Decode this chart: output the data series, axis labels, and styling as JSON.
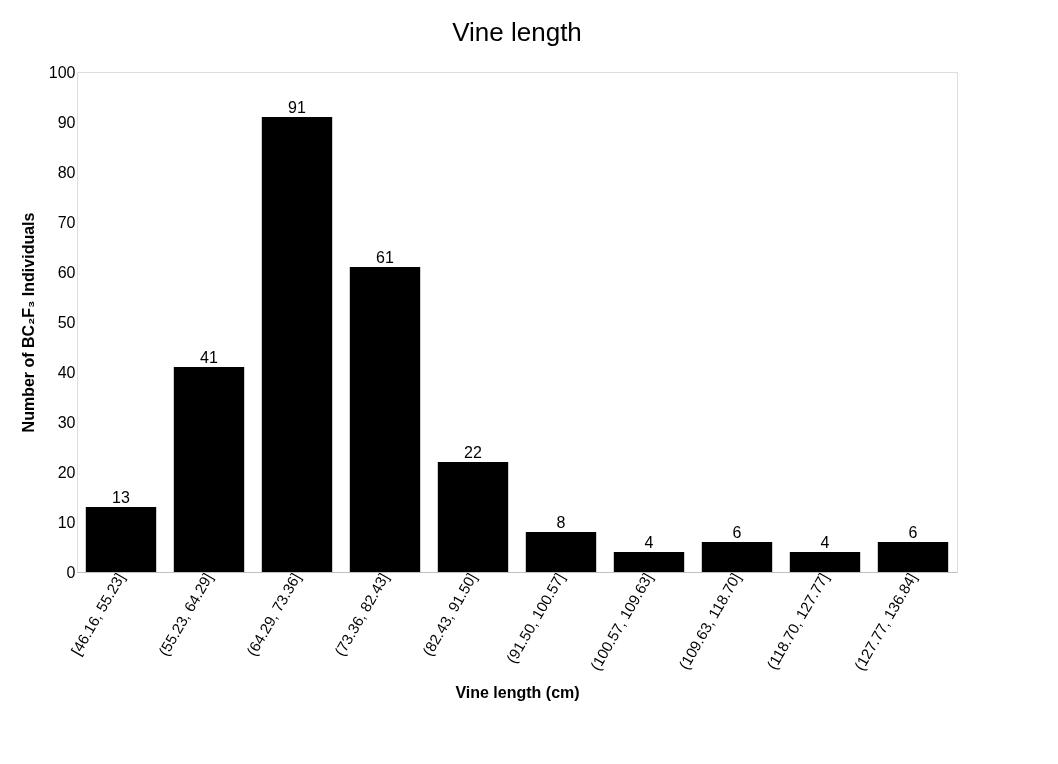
{
  "chart_data": {
    "type": "bar",
    "title": "Vine length",
    "xlabel": "Vine length (cm)",
    "ylabel": "Number of BC₂F₃ Individuals",
    "categories": [
      "[46.16, 55.23]",
      "(55.23, 64.29]",
      "(64.29, 73.36]",
      "(73.36, 82.43]",
      "(82.43, 91.50]",
      "(91.50, 100.57]",
      "(100.57, 109.63]",
      "(109.63, 118.70]",
      "(118.70, 127.77]",
      "(127.77, 136.84]"
    ],
    "values": [
      13,
      41,
      91,
      61,
      22,
      8,
      4,
      6,
      4,
      6
    ],
    "color": "#000000",
    "ylim": [
      0,
      100
    ],
    "yticks": [
      0,
      10,
      20,
      30,
      40,
      50,
      60,
      70,
      80,
      90,
      100
    ],
    "grid": false,
    "data_labels": true
  }
}
